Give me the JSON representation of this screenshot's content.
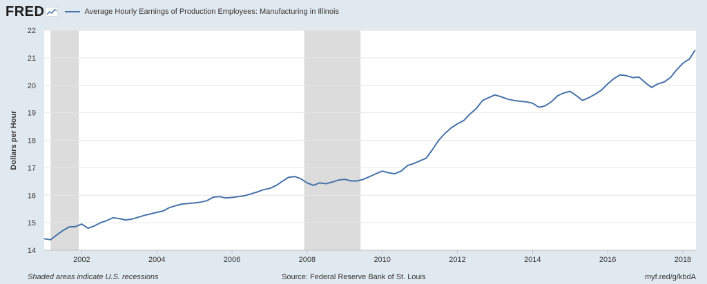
{
  "header": {
    "logo_text": "FRED",
    "logo_icon": "fred-chart-icon",
    "series_title": "Average Hourly Earnings of Production Employees: Manufacturing in Illinois"
  },
  "footer": {
    "recession_note": "Shaded areas indicate U.S. recessions",
    "source": "Source: Federal Reserve Bank of St. Louis",
    "short_url": "myf.red/g/kbdA"
  },
  "colors": {
    "line": "#4572a7",
    "recession": "#dcdcdc",
    "grid": "#e6e6e6",
    "background": "#e1e9f0",
    "plot": "#ffffff"
  },
  "chart_data": {
    "type": "line",
    "title": "",
    "ylabel": "Dollars per Hour",
    "xlabel": "",
    "xlim": [
      2001.0,
      2018.33
    ],
    "ylim": [
      14,
      22
    ],
    "y_ticks": [
      14,
      15,
      16,
      17,
      18,
      19,
      20,
      21,
      22
    ],
    "x_ticks": [
      2002,
      2004,
      2006,
      2008,
      2010,
      2012,
      2014,
      2016,
      2018
    ],
    "grid": "horizontal",
    "legend": "top-left",
    "recessions": [
      [
        2001.17,
        2001.92
      ],
      [
        2007.92,
        2009.42
      ]
    ],
    "series": [
      {
        "name": "Average Hourly Earnings of Production Employees: Manufacturing in Illinois",
        "points": [
          [
            2001.0,
            14.42
          ],
          [
            2001.17,
            14.38
          ],
          [
            2001.33,
            14.55
          ],
          [
            2001.5,
            14.72
          ],
          [
            2001.67,
            14.85
          ],
          [
            2001.83,
            14.86
          ],
          [
            2002.0,
            14.95
          ],
          [
            2002.17,
            14.8
          ],
          [
            2002.33,
            14.88
          ],
          [
            2002.5,
            15.0
          ],
          [
            2002.67,
            15.08
          ],
          [
            2002.83,
            15.18
          ],
          [
            2003.0,
            15.15
          ],
          [
            2003.17,
            15.1
          ],
          [
            2003.33,
            15.13
          ],
          [
            2003.5,
            15.2
          ],
          [
            2003.67,
            15.27
          ],
          [
            2003.83,
            15.32
          ],
          [
            2004.0,
            15.38
          ],
          [
            2004.17,
            15.43
          ],
          [
            2004.33,
            15.55
          ],
          [
            2004.5,
            15.62
          ],
          [
            2004.67,
            15.68
          ],
          [
            2004.83,
            15.7
          ],
          [
            2005.0,
            15.72
          ],
          [
            2005.17,
            15.75
          ],
          [
            2005.33,
            15.8
          ],
          [
            2005.5,
            15.93
          ],
          [
            2005.67,
            15.95
          ],
          [
            2005.83,
            15.9
          ],
          [
            2006.0,
            15.92
          ],
          [
            2006.17,
            15.95
          ],
          [
            2006.33,
            15.98
          ],
          [
            2006.5,
            16.05
          ],
          [
            2006.67,
            16.12
          ],
          [
            2006.83,
            16.2
          ],
          [
            2007.0,
            16.25
          ],
          [
            2007.17,
            16.35
          ],
          [
            2007.33,
            16.5
          ],
          [
            2007.5,
            16.65
          ],
          [
            2007.67,
            16.68
          ],
          [
            2007.83,
            16.6
          ],
          [
            2008.0,
            16.45
          ],
          [
            2008.17,
            16.36
          ],
          [
            2008.33,
            16.45
          ],
          [
            2008.5,
            16.42
          ],
          [
            2008.67,
            16.48
          ],
          [
            2008.83,
            16.55
          ],
          [
            2009.0,
            16.58
          ],
          [
            2009.17,
            16.52
          ],
          [
            2009.33,
            16.52
          ],
          [
            2009.5,
            16.58
          ],
          [
            2009.67,
            16.68
          ],
          [
            2009.83,
            16.78
          ],
          [
            2010.0,
            16.88
          ],
          [
            2010.17,
            16.82
          ],
          [
            2010.33,
            16.78
          ],
          [
            2010.5,
            16.88
          ],
          [
            2010.67,
            17.08
          ],
          [
            2010.83,
            17.15
          ],
          [
            2011.0,
            17.25
          ],
          [
            2011.17,
            17.35
          ],
          [
            2011.33,
            17.65
          ],
          [
            2011.5,
            18.0
          ],
          [
            2011.67,
            18.25
          ],
          [
            2011.83,
            18.45
          ],
          [
            2012.0,
            18.6
          ],
          [
            2012.17,
            18.72
          ],
          [
            2012.33,
            18.95
          ],
          [
            2012.5,
            19.15
          ],
          [
            2012.67,
            19.45
          ],
          [
            2012.83,
            19.55
          ],
          [
            2013.0,
            19.65
          ],
          [
            2013.17,
            19.58
          ],
          [
            2013.33,
            19.5
          ],
          [
            2013.5,
            19.45
          ],
          [
            2013.67,
            19.42
          ],
          [
            2013.83,
            19.4
          ],
          [
            2014.0,
            19.35
          ],
          [
            2014.17,
            19.2
          ],
          [
            2014.33,
            19.25
          ],
          [
            2014.5,
            19.4
          ],
          [
            2014.67,
            19.62
          ],
          [
            2014.83,
            19.72
          ],
          [
            2015.0,
            19.78
          ],
          [
            2015.17,
            19.62
          ],
          [
            2015.33,
            19.45
          ],
          [
            2015.5,
            19.55
          ],
          [
            2015.67,
            19.68
          ],
          [
            2015.83,
            19.82
          ],
          [
            2016.0,
            20.05
          ],
          [
            2016.17,
            20.25
          ],
          [
            2016.33,
            20.38
          ],
          [
            2016.5,
            20.35
          ],
          [
            2016.67,
            20.28
          ],
          [
            2016.83,
            20.3
          ],
          [
            2017.0,
            20.1
          ],
          [
            2017.17,
            19.92
          ],
          [
            2017.33,
            20.05
          ],
          [
            2017.5,
            20.12
          ],
          [
            2017.67,
            20.28
          ],
          [
            2017.83,
            20.55
          ],
          [
            2018.0,
            20.8
          ],
          [
            2018.17,
            20.95
          ],
          [
            2018.33,
            21.28
          ]
        ]
      }
    ]
  }
}
